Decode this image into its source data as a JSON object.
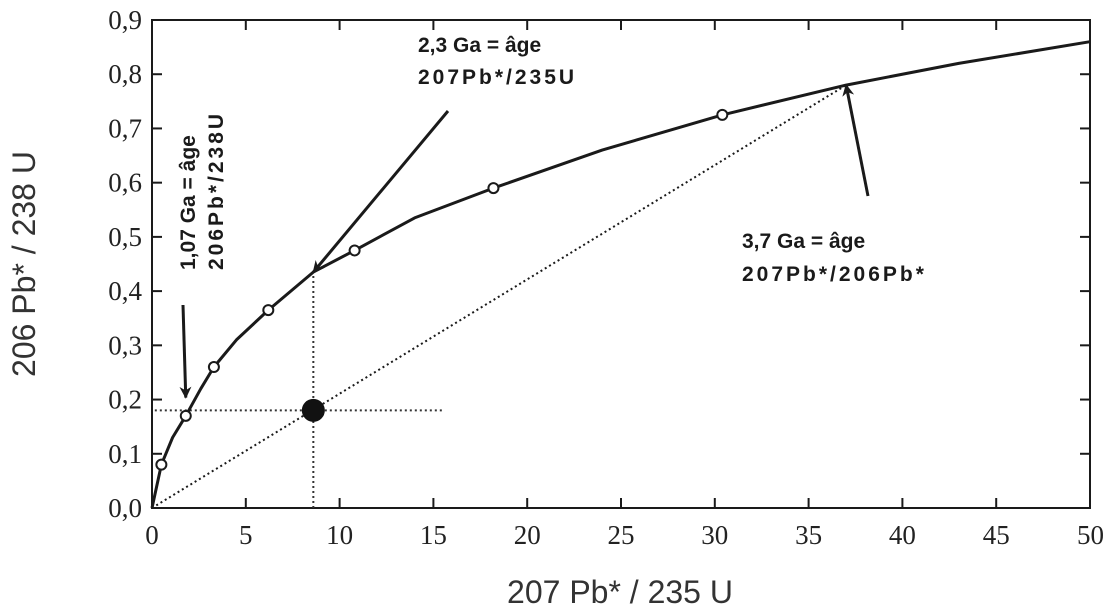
{
  "chart_data": {
    "type": "line",
    "xlabel": "207 Pb* / 235 U",
    "ylabel": "206 Pb* / 238 U",
    "xlim": [
      0,
      50
    ],
    "ylim": [
      0,
      0.9
    ],
    "x_ticks": [
      "0",
      "5",
      "10",
      "15",
      "20",
      "25",
      "30",
      "35",
      "40",
      "45",
      "50"
    ],
    "y_ticks": [
      "0,0",
      "0,1",
      "0,2",
      "0,3",
      "0,4",
      "0,5",
      "0,6",
      "0,7",
      "0,8",
      "0,9"
    ],
    "grid": false,
    "series": [
      {
        "style": "solid",
        "x": [
          0,
          0.5,
          1.1,
          1.8,
          2.6,
          3.3,
          4.5,
          6.2,
          8.6,
          10.8,
          14.0,
          18.2,
          24.0,
          30.4,
          37.0,
          43.0,
          50.0
        ],
        "y": [
          0,
          0.08,
          0.13,
          0.17,
          0.22,
          0.26,
          0.31,
          0.365,
          0.435,
          0.475,
          0.535,
          0.59,
          0.66,
          0.725,
          0.78,
          0.82,
          0.86
        ]
      },
      {
        "style": "dotted",
        "x": [
          0,
          37.0
        ],
        "y": [
          0,
          0.78
        ]
      }
    ],
    "concordia_points": {
      "x": [
        0.5,
        1.8,
        3.3,
        6.2,
        10.8,
        18.2,
        30.4
      ],
      "y": [
        0.08,
        0.17,
        0.26,
        0.365,
        0.475,
        0.59,
        0.725
      ]
    },
    "sample_point": {
      "x": 8.6,
      "y": 0.18
    },
    "guide_lines": {
      "horizontal_y": 0.18,
      "horizontal_x": [
        0.15,
        15.6
      ],
      "vertical_x": 8.6,
      "vertical_y": [
        0,
        0.435
      ]
    },
    "annotations": [
      {
        "lines": [
          "1,07 Ga = âge",
          "206Pb*/238U"
        ],
        "rotated": true,
        "arrow_to": [
          1.8,
          0.2
        ]
      },
      {
        "lines": [
          "2,3 Ga = âge",
          "207Pb*/235U"
        ],
        "rotated": false,
        "arrow_to": [
          8.6,
          0.435
        ]
      },
      {
        "lines": [
          "3,7 Ga = âge",
          "207Pb*/206Pb*"
        ],
        "rotated": false,
        "arrow_to": [
          37.0,
          0.78
        ]
      }
    ]
  }
}
